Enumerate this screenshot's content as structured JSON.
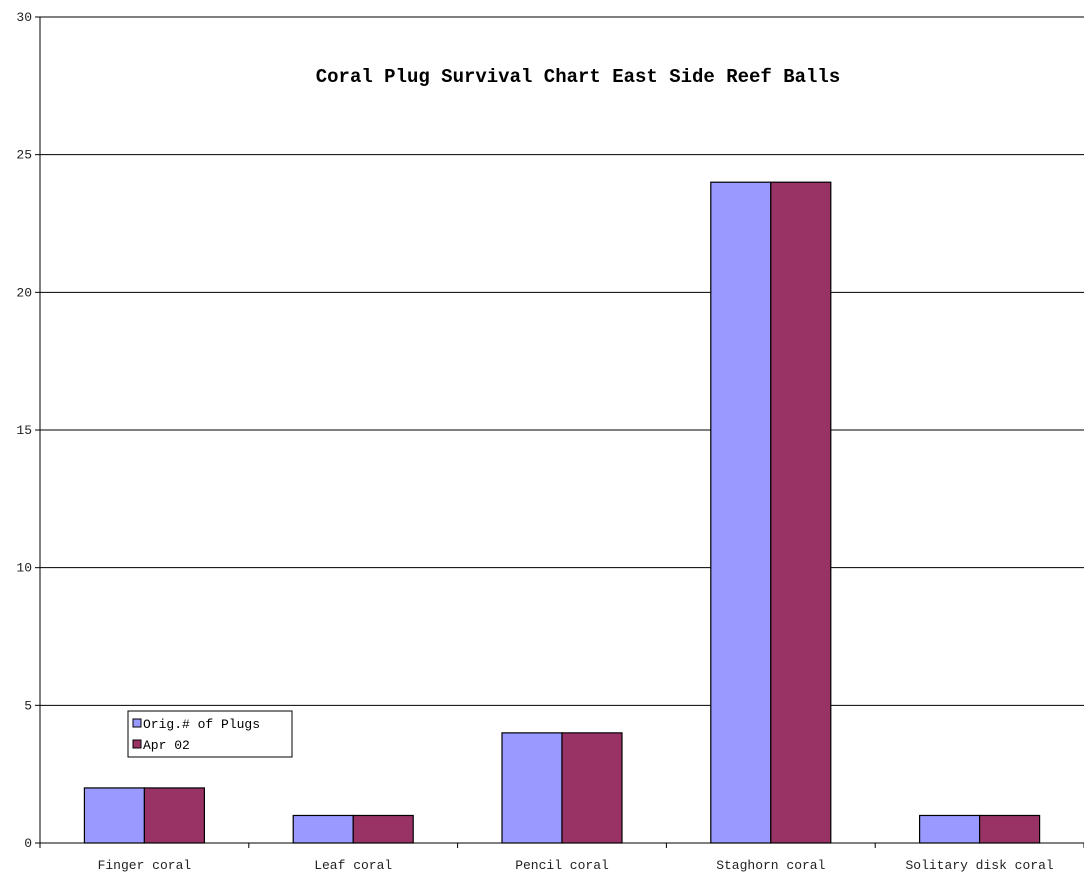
{
  "chart_data": {
    "type": "bar",
    "title": "Coral Plug Survival Chart East Side Reef Balls",
    "xlabel": "",
    "ylabel": "",
    "categories": [
      "Finger coral",
      "Leaf coral",
      "Pencil coral",
      "Staghorn coral",
      "Solitary disk coral"
    ],
    "series": [
      {
        "name": "Orig.# of Plugs",
        "values": [
          2,
          1,
          4,
          24,
          1
        ],
        "color": "#9999ff"
      },
      {
        "name": "Apr 02",
        "values": [
          2,
          1,
          4,
          24,
          1
        ],
        "color": "#993366"
      }
    ],
    "ylim": [
      0,
      30
    ],
    "yticks": [
      0,
      5,
      10,
      15,
      20,
      25,
      30
    ],
    "grid": true,
    "legend_position": "bottom-left"
  }
}
